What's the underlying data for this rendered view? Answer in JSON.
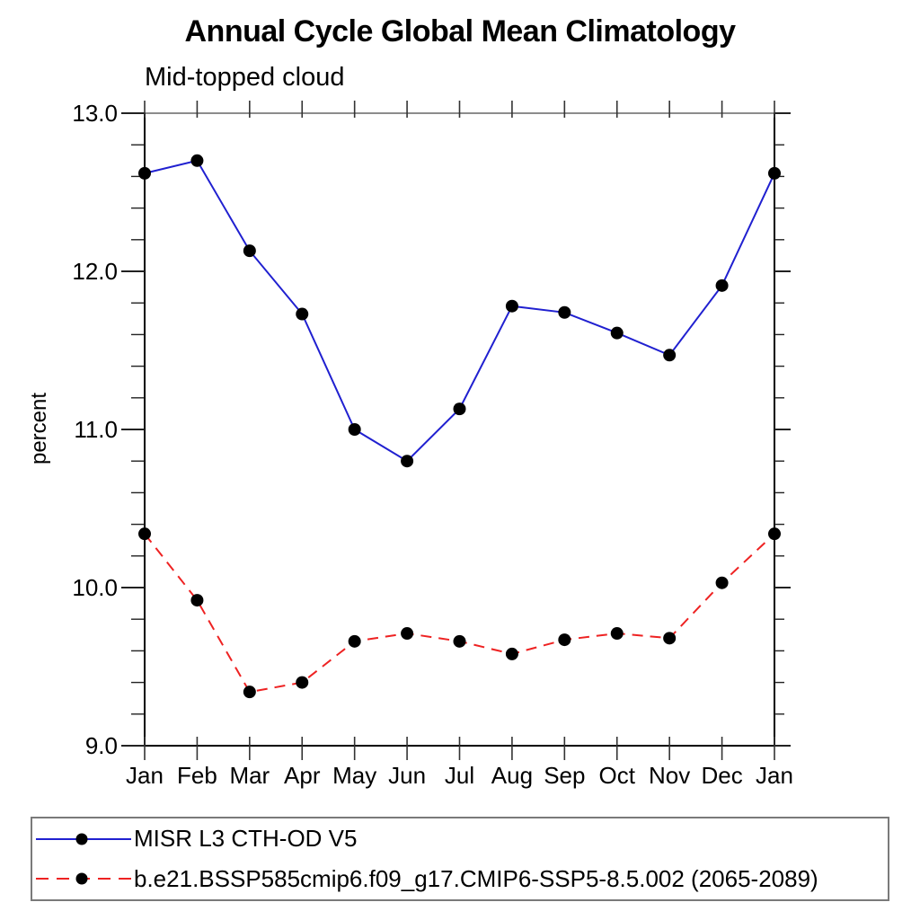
{
  "title": "Annual Cycle Global Mean Climatology",
  "subtitle": "Mid-topped cloud",
  "chart_data": {
    "type": "line",
    "title": "Annual Cycle Global Mean Climatology",
    "subtitle": "Mid-topped cloud",
    "xlabel": "",
    "ylabel": "percent",
    "x_categories": [
      "Jan",
      "Feb",
      "Mar",
      "Apr",
      "May",
      "Jun",
      "Jul",
      "Aug",
      "Sep",
      "Oct",
      "Nov",
      "Dec",
      "Jan"
    ],
    "ylim": [
      9.0,
      13.0
    ],
    "ytick_major": [
      "9.0",
      "10.0",
      "11.0",
      "12.0",
      "13.0"
    ],
    "ytick_minor_step": 0.2,
    "grid": false,
    "legend_position": "bottom",
    "series": [
      {
        "name": "MISR L3 CTH-OD V5",
        "line_style": "solid",
        "line_color": "#2020d0",
        "marker": "circle",
        "marker_color": "#000000",
        "values": [
          12.62,
          12.7,
          12.13,
          11.73,
          11.0,
          10.8,
          11.13,
          11.78,
          11.74,
          11.61,
          11.47,
          11.91,
          12.62
        ]
      },
      {
        "name": "b.e21.BSSP585cmip6.f09_g17.CMIP6-SSP5-8.5.002 (2065-2089)",
        "line_style": "dashed",
        "line_color": "#ee2222",
        "marker": "circle",
        "marker_color": "#000000",
        "values": [
          10.34,
          9.92,
          9.34,
          9.4,
          9.66,
          9.71,
          9.66,
          9.58,
          9.67,
          9.71,
          9.68,
          10.03,
          10.34
        ]
      }
    ]
  }
}
